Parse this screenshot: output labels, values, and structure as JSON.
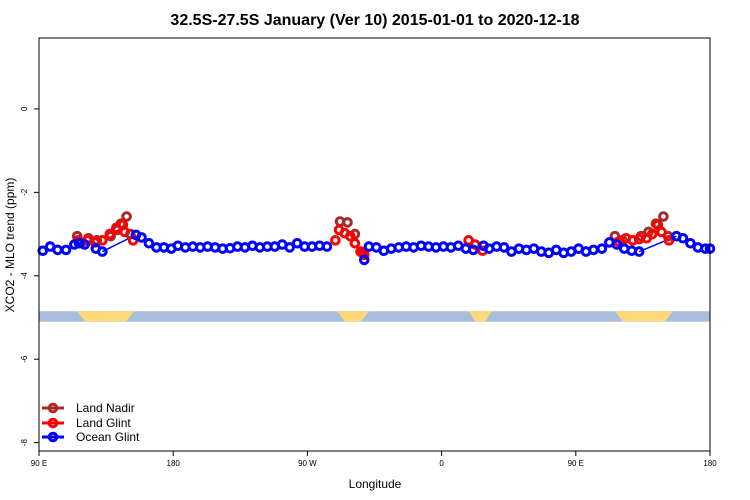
{
  "chart_data": {
    "type": "scatter",
    "title": "32.5S-27.5S January (Ver 10)   2015-01-01 to 2020-12-18",
    "xlabel": "Longitude",
    "ylabel": "XCO2 - MLO trend (ppm)",
    "xlim": [
      0,
      360
    ],
    "ylim": [
      -8.2,
      1.7
    ],
    "x_ticks": [
      {
        "value": 0,
        "label": "90 E"
      },
      {
        "value": 72,
        "label": "180"
      },
      {
        "value": 144,
        "label": "90 W"
      },
      {
        "value": 216,
        "label": "0"
      },
      {
        "value": 288,
        "label": "90 E"
      },
      {
        "value": 360,
        "label": "180"
      }
    ],
    "y_ticks": [
      {
        "value": 0,
        "label": "0"
      },
      {
        "value": -2,
        "label": "-2"
      },
      {
        "value": -4,
        "label": "-4"
      },
      {
        "value": -6,
        "label": "-6"
      },
      {
        "value": -8,
        "label": "-8"
      }
    ],
    "colors": {
      "land_nadir": "#a52a2a",
      "land_glint": "#ff0000",
      "ocean_glint": "#0000ff",
      "ocean_band": "#a8bcdc",
      "land_band": "#ffd878"
    },
    "surface_band": {
      "y_range": [
        -5.1,
        -4.85
      ],
      "land_segments": [
        [
          20.5,
          51
        ],
        [
          160,
          177
        ],
        [
          230.5,
          243
        ],
        [
          309,
          340
        ]
      ]
    },
    "legend": {
      "position": "bottom-left",
      "entries": [
        {
          "name": "Land Nadir",
          "color": "#a52a2a"
        },
        {
          "name": "Land Glint",
          "color": "#ff0000"
        },
        {
          "name": "Ocean Glint",
          "color": "#0000ff"
        }
      ]
    },
    "series": [
      {
        "name": "Land Nadir",
        "color": "#a52a2a",
        "points": [
          [
            20.5,
            -3.05
          ],
          [
            22.5,
            -3.22
          ],
          [
            26.5,
            -3.1
          ],
          [
            31,
            -3.15
          ],
          [
            38.5,
            -3.05
          ],
          [
            42,
            -2.9
          ],
          [
            44,
            -2.75
          ],
          [
            47,
            -2.58
          ],
          [
            49,
            -3.0
          ],
          [
            161.5,
            -2.7
          ],
          [
            165.5,
            -2.72
          ],
          [
            169.5,
            -3.0
          ],
          [
            173.5,
            -3.45
          ],
          [
            309,
            -3.05
          ],
          [
            313,
            -3.15
          ],
          [
            323,
            -3.05
          ],
          [
            327,
            -2.95
          ],
          [
            331,
            -2.75
          ],
          [
            335,
            -2.58
          ],
          [
            337.5,
            -3.05
          ]
        ]
      },
      {
        "name": "Land Glint",
        "color": "#ff0000",
        "points": [
          [
            21,
            -3.15
          ],
          [
            26,
            -3.15
          ],
          [
            30,
            -3.2
          ],
          [
            34,
            -3.15
          ],
          [
            38,
            -3.0
          ],
          [
            41.5,
            -2.85
          ],
          [
            45,
            -2.78
          ],
          [
            46,
            -2.95
          ],
          [
            50.5,
            -3.15
          ],
          [
            159,
            -3.15
          ],
          [
            161,
            -2.9
          ],
          [
            164,
            -2.98
          ],
          [
            167,
            -3.05
          ],
          [
            169.5,
            -3.22
          ],
          [
            172.5,
            -3.42
          ],
          [
            174.5,
            -3.5
          ],
          [
            230.5,
            -3.15
          ],
          [
            234,
            -3.25
          ],
          [
            238,
            -3.4
          ],
          [
            311,
            -3.18
          ],
          [
            315,
            -3.1
          ],
          [
            318.5,
            -3.15
          ],
          [
            322,
            -3.12
          ],
          [
            326,
            -3.1
          ],
          [
            329,
            -3.0
          ],
          [
            332,
            -2.78
          ],
          [
            334,
            -2.95
          ],
          [
            338,
            -3.15
          ]
        ]
      },
      {
        "name": "Ocean Glint",
        "color": "#0000ff",
        "points": [
          [
            2,
            -3.4
          ],
          [
            6,
            -3.3
          ],
          [
            10,
            -3.38
          ],
          [
            14.5,
            -3.38
          ],
          [
            19,
            -3.25
          ],
          [
            21.5,
            -3.22
          ],
          [
            24.5,
            -3.25
          ],
          [
            30.5,
            -3.35
          ],
          [
            34,
            -3.42
          ],
          [
            52,
            -3.02
          ],
          [
            55,
            -3.08
          ],
          [
            59,
            -3.22
          ],
          [
            63,
            -3.32
          ],
          [
            67,
            -3.32
          ],
          [
            71,
            -3.35
          ],
          [
            74.5,
            -3.28
          ],
          [
            78.5,
            -3.32
          ],
          [
            82.5,
            -3.3
          ],
          [
            86.5,
            -3.32
          ],
          [
            90.5,
            -3.3
          ],
          [
            94.5,
            -3.32
          ],
          [
            98.5,
            -3.35
          ],
          [
            102.5,
            -3.34
          ],
          [
            106.5,
            -3.3
          ],
          [
            110.5,
            -3.32
          ],
          [
            114.5,
            -3.28
          ],
          [
            118.5,
            -3.32
          ],
          [
            122.5,
            -3.3
          ],
          [
            126.5,
            -3.3
          ],
          [
            130.5,
            -3.25
          ],
          [
            134.5,
            -3.32
          ],
          [
            138.5,
            -3.22
          ],
          [
            142.5,
            -3.3
          ],
          [
            146.5,
            -3.3
          ],
          [
            150.5,
            -3.28
          ],
          [
            154.5,
            -3.3
          ],
          [
            174.5,
            -3.62
          ],
          [
            177,
            -3.3
          ],
          [
            181,
            -3.32
          ],
          [
            185,
            -3.4
          ],
          [
            189,
            -3.35
          ],
          [
            193,
            -3.32
          ],
          [
            197,
            -3.3
          ],
          [
            201,
            -3.32
          ],
          [
            205,
            -3.28
          ],
          [
            209,
            -3.3
          ],
          [
            213,
            -3.32
          ],
          [
            217,
            -3.3
          ],
          [
            221,
            -3.32
          ],
          [
            225,
            -3.28
          ],
          [
            229,
            -3.35
          ],
          [
            233,
            -3.38
          ],
          [
            238.5,
            -3.28
          ],
          [
            241.5,
            -3.35
          ],
          [
            245.5,
            -3.3
          ],
          [
            249.5,
            -3.32
          ],
          [
            253.5,
            -3.42
          ],
          [
            257.5,
            -3.35
          ],
          [
            261.5,
            -3.38
          ],
          [
            265.5,
            -3.35
          ],
          [
            269.5,
            -3.42
          ],
          [
            273.5,
            -3.45
          ],
          [
            277.5,
            -3.38
          ],
          [
            281.5,
            -3.45
          ],
          [
            285.5,
            -3.42
          ],
          [
            289.5,
            -3.35
          ],
          [
            293.5,
            -3.42
          ],
          [
            297.5,
            -3.38
          ],
          [
            302,
            -3.35
          ],
          [
            306,
            -3.2
          ],
          [
            310,
            -3.25
          ],
          [
            314,
            -3.35
          ],
          [
            318,
            -3.4
          ],
          [
            322,
            -3.42
          ],
          [
            342,
            -3.05
          ],
          [
            345.5,
            -3.1
          ],
          [
            349.5,
            -3.22
          ],
          [
            353.5,
            -3.32
          ],
          [
            357.5,
            -3.35
          ],
          [
            360,
            -3.35
          ]
        ]
      }
    ],
    "connector_lines": [
      {
        "series": "Ocean Glint",
        "color": "#0000ff",
        "points": [
          [
            34,
            -3.42
          ],
          [
            52,
            -3.02
          ]
        ]
      },
      {
        "series": "Ocean Glint",
        "color": "#0000ff",
        "points": [
          [
            322,
            -3.42
          ],
          [
            342,
            -3.05
          ]
        ]
      }
    ]
  }
}
